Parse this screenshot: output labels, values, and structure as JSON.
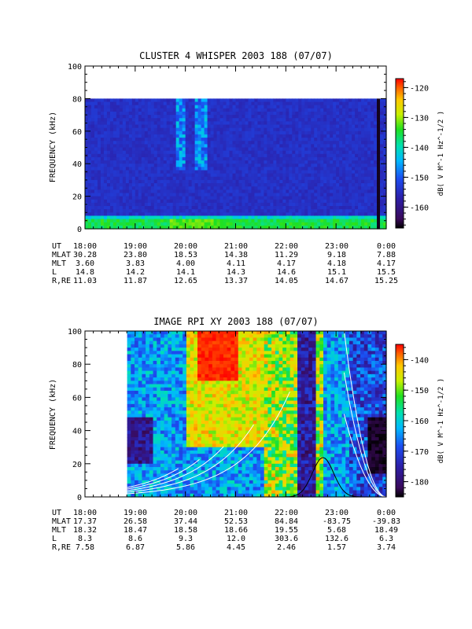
{
  "chart_data": [
    {
      "type": "heatmap",
      "title": "CLUSTER 4 WHISPER 2003 188 (07/07)",
      "ylabel": "FREQUENCY (kHz)",
      "ylim": [
        0,
        100
      ],
      "yticks": [
        "0",
        "20",
        "40",
        "60",
        "80",
        "100"
      ],
      "xticks": [
        "18:00",
        "19:00",
        "20:00",
        "21:00",
        "22:00",
        "23:00",
        "0:00"
      ],
      "colorbar": {
        "label": "dB( V M^-1 Hz^-1/2 )",
        "range": [
          -167,
          -117
        ],
        "ticks": [
          "-120",
          "-130",
          "-140",
          "-150",
          "-160"
        ]
      },
      "ephemeris": [
        {
          "label": "UT",
          "values": [
            "18:00",
            "19:00",
            "20:00",
            "21:00",
            "22:00",
            "23:00",
            "0:00"
          ]
        },
        {
          "label": "MLAT",
          "values": [
            "30.28",
            "23.80",
            "18.53",
            "14.38",
            "11.29",
            "9.18",
            "7.88"
          ]
        },
        {
          "label": "MLT",
          "values": [
            "3.60",
            "3.83",
            "4.00",
            "4.11",
            "4.17",
            "4.18",
            "4.17"
          ]
        },
        {
          "label": "L",
          "values": [
            "14.8",
            "14.2",
            "14.1",
            "14.3",
            "14.6",
            "15.1",
            "15.5"
          ]
        },
        {
          "label": "R,RE",
          "values": [
            "11.03",
            "11.87",
            "12.65",
            "13.37",
            "14.05",
            "14.67",
            "15.25"
          ]
        }
      ]
    },
    {
      "type": "heatmap",
      "title": "IMAGE RPI XY 2003 188 (07/07)",
      "ylabel": "FREQUENCY (kHz)",
      "ylim": [
        0,
        100
      ],
      "yticks": [
        "0",
        "20",
        "40",
        "60",
        "80",
        "100"
      ],
      "xticks": [
        "18:00",
        "19:00",
        "20:00",
        "21:00",
        "22:00",
        "23:00",
        "0:00"
      ],
      "colorbar": {
        "label": "dB( V M^-1 Hz^-1/2 )",
        "range": [
          -185,
          -135
        ],
        "ticks": [
          "-140",
          "-150",
          "-160",
          "-170",
          "-180"
        ]
      },
      "ephemeris": [
        {
          "label": "UT",
          "values": [
            "18:00",
            "19:00",
            "20:00",
            "21:00",
            "22:00",
            "23:00",
            "0:00"
          ]
        },
        {
          "label": "MLAT",
          "values": [
            "17.37",
            "26.58",
            "37.44",
            "52.53",
            "84.84",
            "-83.75",
            "-39.83"
          ]
        },
        {
          "label": "MLT",
          "values": [
            "18.32",
            "18.47",
            "18.58",
            "18.66",
            "19.55",
            "5.68",
            "18.49"
          ]
        },
        {
          "label": "L",
          "values": [
            "8.3",
            "8.6",
            "9.3",
            "12.0",
            "303.6",
            "132.6",
            "6.3"
          ]
        },
        {
          "label": "R,RE",
          "values": [
            "7.58",
            "6.87",
            "5.86",
            "4.45",
            "2.46",
            "1.57",
            "3.74"
          ]
        }
      ]
    }
  ]
}
